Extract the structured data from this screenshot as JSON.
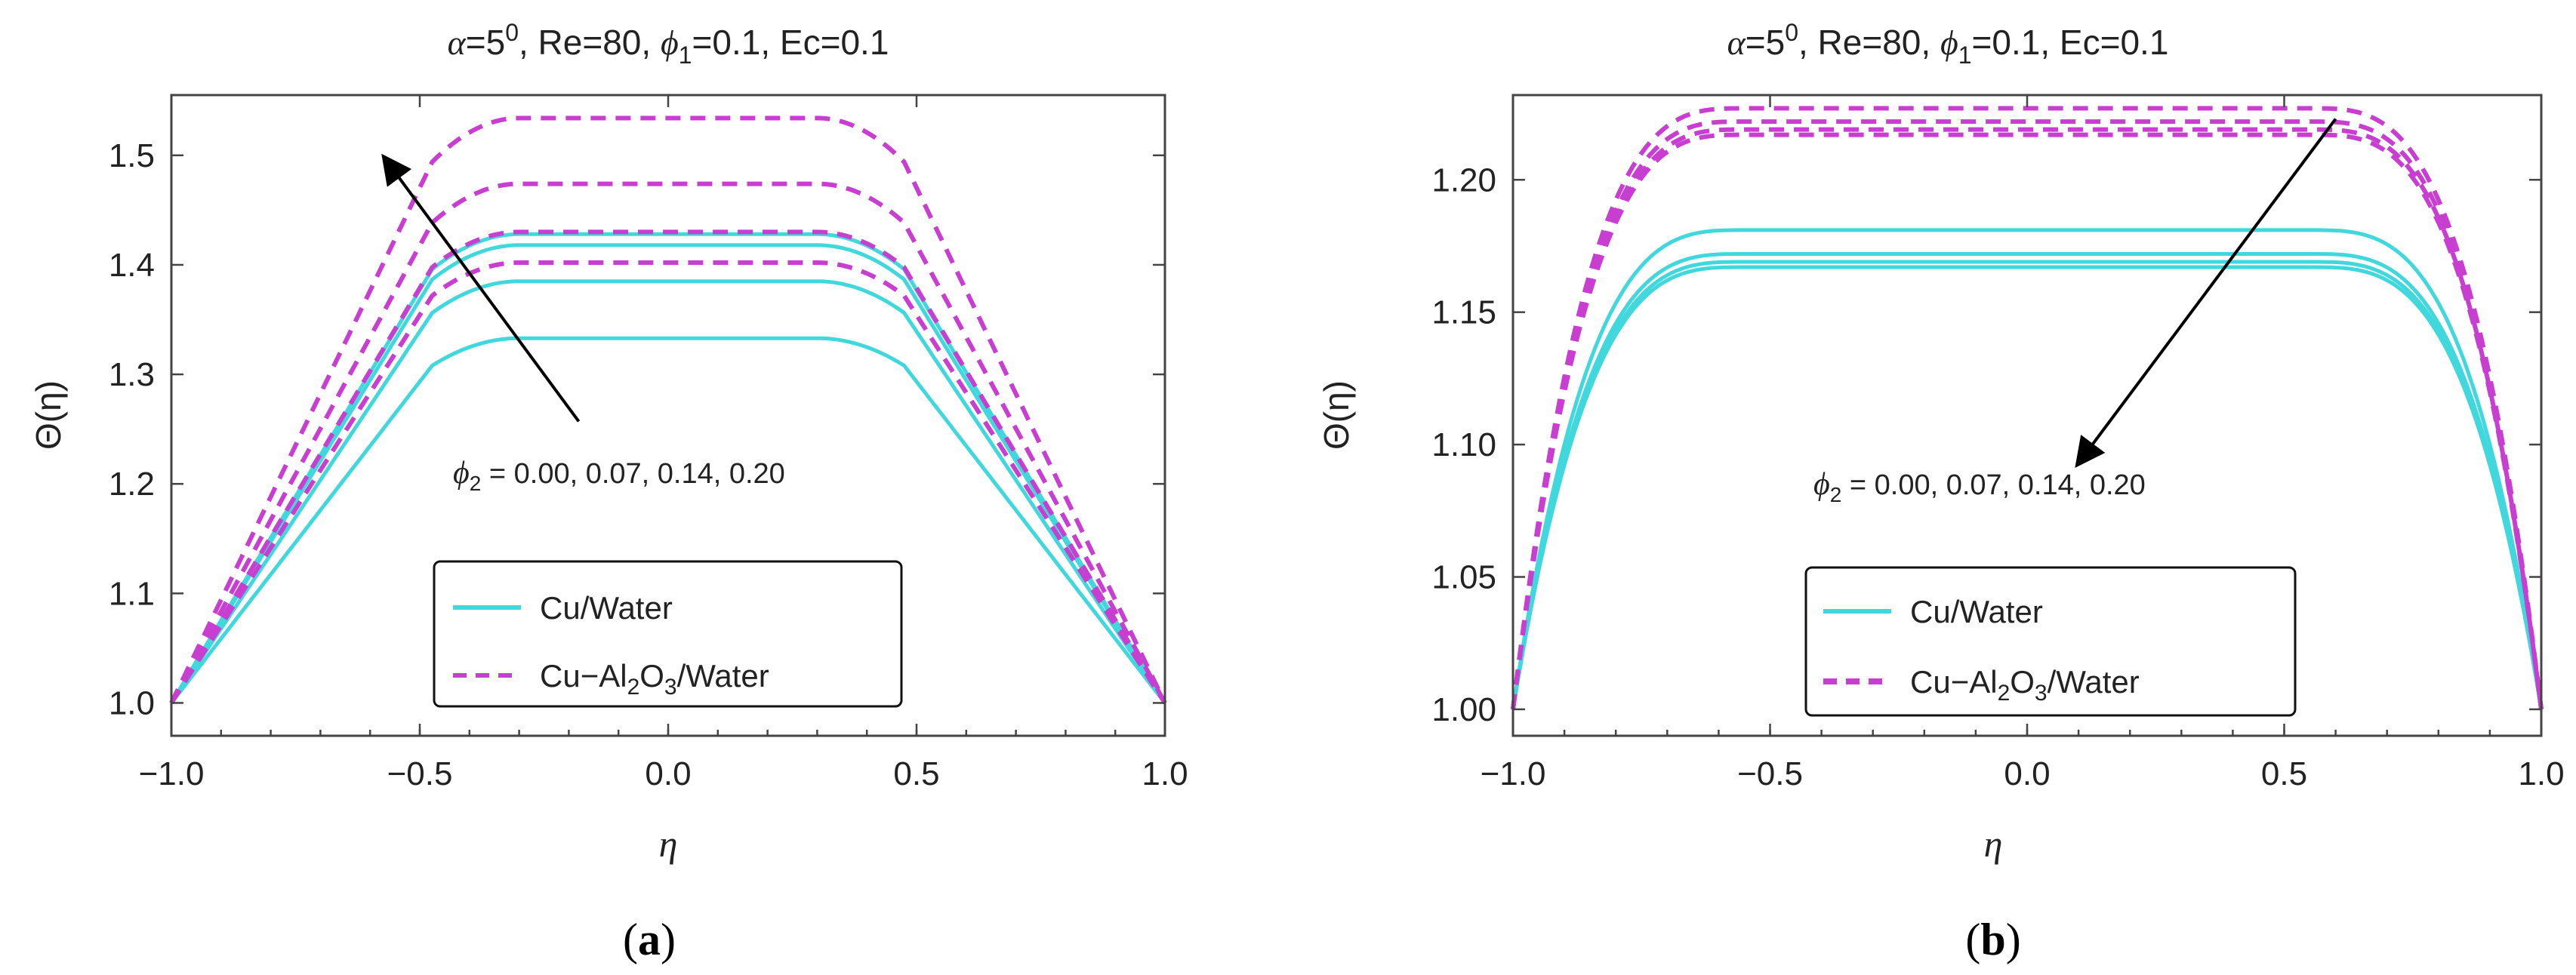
{
  "colors": {
    "cu_water": "#40d8dc",
    "hybrid": "#c83ed0",
    "axis": "#444444",
    "text": "#222222",
    "arrow": "#000000"
  },
  "chart_data": [
    {
      "panel": "a",
      "type": "line",
      "title": {
        "alpha": "α",
        "alpha_val": "=5",
        "alpha_sup": "0",
        "rest1": ", Re=80, ",
        "phi": "ϕ",
        "phi_sub": "1",
        "rest2": "=0.1, Ec=0.1"
      },
      "xlabel": "η",
      "ylabel": "Θ(η)",
      "xlim": [
        -1.0,
        1.0
      ],
      "ylim": [
        0.97,
        1.555
      ],
      "xticks": [
        -1.0,
        -0.5,
        0.0,
        0.5,
        1.0
      ],
      "xtick_labels": [
        "−1.0",
        "−0.5",
        "0.0",
        "0.5",
        "1.0"
      ],
      "yticks": [
        1.0,
        1.1,
        1.2,
        1.3,
        1.4,
        1.5
      ],
      "ytick_labels": [
        "1.0",
        "1.1",
        "1.2",
        "1.3",
        "1.4",
        "1.5"
      ],
      "annotation": {
        "phi": "ϕ",
        "sub": "2",
        "text": " = 0.00, 0.07, 0.14, 0.20",
        "arrow_from": [
          -0.18,
          1.257
        ],
        "arrow_to": [
          -0.57,
          1.497
        ]
      },
      "legend": {
        "placement": "bottom-center",
        "entries": [
          {
            "label": "Cu/Water",
            "style": "solid"
          },
          {
            "label_parts": [
              "Cu−Al",
              "2",
              "O",
              "3",
              "/Water"
            ],
            "style": "dashed"
          }
        ]
      },
      "profile": {
        "shape_power": 2.6,
        "flat_halfwidth": 0.3
      },
      "series": [
        {
          "name": "Cu/Water",
          "phi2": 0.0,
          "style": "solid",
          "peak": 1.333
        },
        {
          "name": "Cu/Water",
          "phi2": 0.07,
          "style": "solid",
          "peak": 1.385
        },
        {
          "name": "Cu/Water",
          "phi2": 0.14,
          "style": "solid",
          "peak": 1.418
        },
        {
          "name": "Cu/Water",
          "phi2": 0.2,
          "style": "solid",
          "peak": 1.428
        },
        {
          "name": "Cu-Al2O3/Water",
          "phi2": 0.0,
          "style": "dashed",
          "peak": 1.402
        },
        {
          "name": "Cu-Al2O3/Water",
          "phi2": 0.07,
          "style": "dashed",
          "peak": 1.43
        },
        {
          "name": "Cu-Al2O3/Water",
          "phi2": 0.14,
          "style": "dashed",
          "peak": 1.474
        },
        {
          "name": "Cu-Al2O3/Water",
          "phi2": 0.2,
          "style": "dashed",
          "peak": 1.534
        }
      ]
    },
    {
      "panel": "b",
      "type": "line",
      "title": {
        "alpha": "α",
        "alpha_val": "=5",
        "alpha_sup": "0",
        "rest1": ", Re=80, ",
        "phi": "ϕ",
        "phi_sub": "1",
        "rest2": "=0.1, Ec=0.1"
      },
      "xlabel": "η",
      "ylabel": "Θ(η)",
      "xlim": [
        -1.0,
        1.0
      ],
      "ylim": [
        0.99,
        1.232
      ],
      "xticks": [
        -1.0,
        -0.5,
        0.0,
        0.5,
        1.0
      ],
      "xtick_labels": [
        "−1.0",
        "−0.5",
        "0.0",
        "0.5",
        "1.0"
      ],
      "yticks": [
        1.0,
        1.05,
        1.1,
        1.15,
        1.2
      ],
      "ytick_labels": [
        "1.00",
        "1.05",
        "1.10",
        "1.15",
        "1.20"
      ],
      "annotation": {
        "phi": "ϕ",
        "sub": "2",
        "text": " = 0.00, 0.07, 0.14, 0.20",
        "arrow_from": [
          0.6,
          1.223
        ],
        "arrow_to": [
          0.1,
          1.093
        ]
      },
      "legend": {
        "placement": "bottom-center",
        "entries": [
          {
            "label": "Cu/Water",
            "style": "solid"
          },
          {
            "label_parts": [
              "Cu−Al",
              "2",
              "O",
              "3",
              "/Water"
            ],
            "style": "dashed"
          }
        ]
      },
      "profile": {
        "shape_power": 11,
        "flat_halfwidth": 0.55
      },
      "series": [
        {
          "name": "Cu/Water",
          "phi2": 0.0,
          "style": "solid",
          "peak": 1.181
        },
        {
          "name": "Cu/Water",
          "phi2": 0.07,
          "style": "solid",
          "peak": 1.172
        },
        {
          "name": "Cu/Water",
          "phi2": 0.14,
          "style": "solid",
          "peak": 1.169
        },
        {
          "name": "Cu/Water",
          "phi2": 0.2,
          "style": "solid",
          "peak": 1.167
        },
        {
          "name": "Cu-Al2O3/Water",
          "phi2": 0.0,
          "style": "dashed",
          "peak": 1.227
        },
        {
          "name": "Cu-Al2O3/Water",
          "phi2": 0.07,
          "style": "dashed",
          "peak": 1.222
        },
        {
          "name": "Cu-Al2O3/Water",
          "phi2": 0.14,
          "style": "dashed",
          "peak": 1.219
        },
        {
          "name": "Cu-Al2O3/Water",
          "phi2": 0.2,
          "style": "dashed",
          "peak": 1.217
        }
      ]
    }
  ],
  "captions": [
    {
      "open": "(",
      "letter": "a",
      "close": ")"
    },
    {
      "open": "(",
      "letter": "b",
      "close": ")"
    }
  ]
}
